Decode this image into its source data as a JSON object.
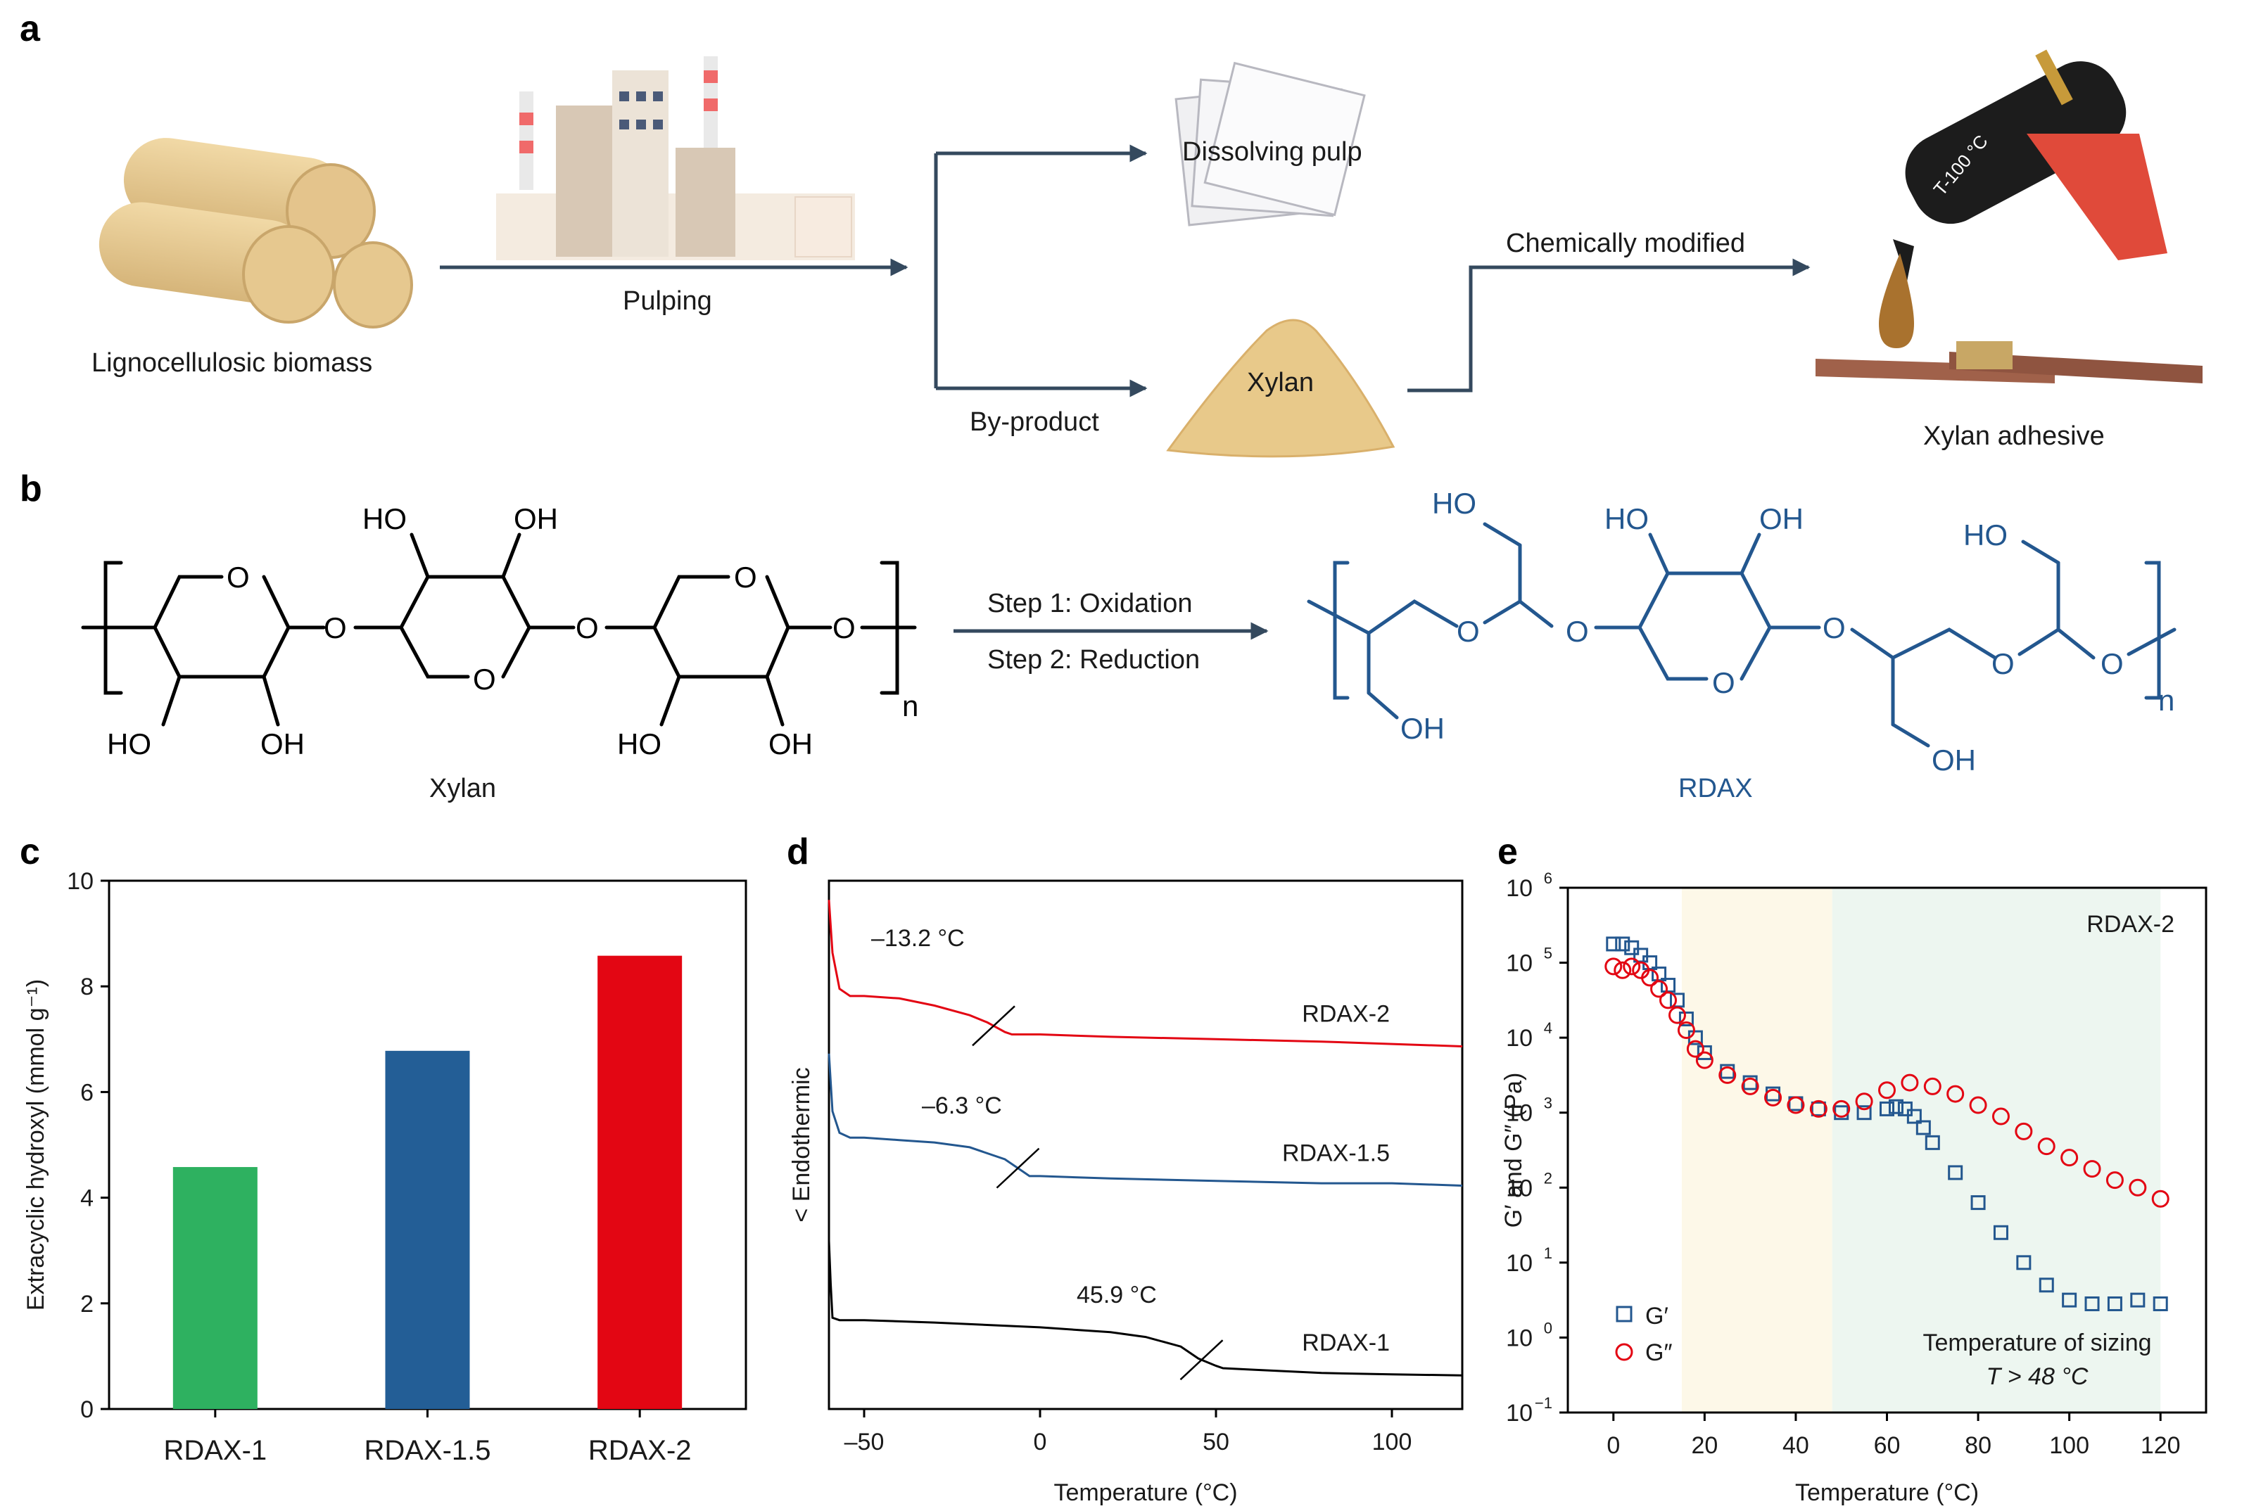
{
  "panels": {
    "a": "a",
    "b": "b",
    "c": "c",
    "d": "d",
    "e": "e"
  },
  "panel_a": {
    "biomass_label": "Lignocellulosic biomass",
    "pulping_label": "Pulping",
    "dissolving_pulp_label": "Dissolving pulp",
    "xylan_label": "Xylan",
    "byproduct_label": "By-product",
    "chem_mod_label": "Chemically modified",
    "adhesive_label": "Xylan adhesive",
    "glue_gun_text": "T-100 °C"
  },
  "panel_b": {
    "xylan_name": "Xylan",
    "rdax_name": "RDAX",
    "step1": "Step 1: Oxidation",
    "step2": "Step 2: Reduction",
    "ho": "HO",
    "oh": "OH",
    "o": "O",
    "n": "n"
  },
  "colors": {
    "green": "#2eb160",
    "blue": "#235e96",
    "red": "#e30613",
    "black": "#000000",
    "rdax_blue": "#23578f",
    "shade_yellow": "#fdf8e8",
    "shade_green": "#edf6f0"
  },
  "chart_data": [
    {
      "type": "bar",
      "panel": "c",
      "categories": [
        "RDAX-1",
        "RDAX-1.5",
        "RDAX-2"
      ],
      "values": [
        4.58,
        6.78,
        8.58
      ],
      "bar_colors": [
        "#2eb160",
        "#235e96",
        "#e30613"
      ],
      "ylabel": "Extracyclic hydroxyl (mmol g⁻¹)",
      "ylim": [
        0,
        10
      ],
      "yticks": [
        "0",
        "2",
        "4",
        "6",
        "8",
        "10"
      ]
    },
    {
      "type": "line",
      "panel": "d",
      "xlabel": "Temperature (°C)",
      "ylabel": "< Endothermic",
      "xlim": [
        -60,
        120
      ],
      "xticks": [
        "–50",
        "0",
        "50",
        "100"
      ],
      "series": [
        {
          "name": "RDAX-2",
          "color": "#e30613",
          "tg": "–13.2 °C",
          "x": [
            -60,
            -59,
            -57,
            -54,
            -50,
            -40,
            -30,
            -20,
            -15,
            -10,
            -8,
            0,
            20,
            50,
            80,
            100,
            120
          ],
          "y": [
            10.6,
            9.5,
            8.75,
            8.6,
            8.6,
            8.55,
            8.4,
            8.2,
            8.05,
            7.85,
            7.8,
            7.8,
            7.75,
            7.7,
            7.65,
            7.6,
            7.55
          ]
        },
        {
          "name": "RDAX-1.5",
          "color": "#23578f",
          "tg": "–6.3 °C",
          "x": [
            -60,
            -59,
            -57,
            -54,
            -50,
            -40,
            -30,
            -20,
            -10,
            -5,
            -3,
            0,
            20,
            50,
            80,
            100,
            120
          ],
          "y": [
            7.4,
            6.2,
            5.75,
            5.65,
            5.65,
            5.6,
            5.55,
            5.45,
            5.2,
            4.95,
            4.85,
            4.85,
            4.8,
            4.75,
            4.7,
            4.7,
            4.65
          ],
          "y_is_relative": false
        },
        {
          "name": "RDAX-1",
          "color": "#000000",
          "tg": "45.9 °C",
          "x": [
            -60,
            -59.5,
            -59,
            -57,
            -54,
            -50,
            -30,
            0,
            20,
            30,
            40,
            45,
            50,
            52,
            60,
            80,
            100,
            120
          ],
          "y": [
            3.5,
            2.6,
            1.9,
            1.85,
            1.85,
            1.85,
            1.8,
            1.7,
            1.6,
            1.5,
            1.3,
            1.05,
            0.9,
            0.85,
            0.82,
            0.75,
            0.72,
            0.7
          ]
        }
      ]
    },
    {
      "type": "scatter",
      "panel": "e",
      "xlabel": "Temperature (°C)",
      "ylabel": "G′ and G″ (Pa)",
      "xlim": [
        -10,
        130
      ],
      "ylim_log10": [
        -1,
        6
      ],
      "xticks": [
        "0",
        "20",
        "40",
        "60",
        "80",
        "100",
        "120"
      ],
      "yticks": [
        "10",
        "10",
        "10",
        "10",
        "10",
        "10",
        "10",
        "10"
      ],
      "yticks_exp": [
        "−1",
        "0",
        "1",
        "2",
        "3",
        "4",
        "5",
        "6"
      ],
      "shaded_regions": [
        {
          "from": 15,
          "to": 48,
          "color": "#fdf8e8"
        },
        {
          "from": 48,
          "to": 120,
          "color": "#edf6f0"
        }
      ],
      "label_sample": "RDAX-2",
      "label_sizing": "Temperature of sizing",
      "label_condition": "T > 48 °C",
      "series": [
        {
          "name": "G′",
          "marker": "square",
          "color": "#23578f",
          "x": [
            0,
            2,
            4,
            6,
            8,
            10,
            12,
            14,
            16,
            18,
            20,
            25,
            30,
            35,
            40,
            45,
            50,
            55,
            60,
            62,
            64,
            66,
            68,
            70,
            75,
            80,
            85,
            90,
            95,
            100,
            105,
            110,
            115,
            120
          ],
          "logy": [
            5.25,
            5.25,
            5.2,
            5.1,
            5.0,
            4.85,
            4.7,
            4.5,
            4.25,
            4.0,
            3.8,
            3.55,
            3.4,
            3.25,
            3.12,
            3.05,
            3.0,
            3.0,
            3.05,
            3.08,
            3.05,
            2.95,
            2.8,
            2.6,
            2.2,
            1.8,
            1.4,
            1.0,
            0.7,
            0.5,
            0.45,
            0.45,
            0.5,
            0.45
          ]
        },
        {
          "name": "G″",
          "marker": "circle",
          "color": "#e30613",
          "x": [
            0,
            2,
            4,
            6,
            8,
            10,
            12,
            14,
            16,
            18,
            20,
            25,
            30,
            35,
            40,
            45,
            50,
            55,
            60,
            65,
            70,
            75,
            80,
            85,
            90,
            95,
            100,
            105,
            110,
            115,
            120
          ],
          "logy": [
            4.95,
            4.9,
            4.95,
            4.9,
            4.8,
            4.65,
            4.5,
            4.3,
            4.1,
            3.85,
            3.7,
            3.5,
            3.35,
            3.2,
            3.1,
            3.05,
            3.05,
            3.15,
            3.3,
            3.4,
            3.35,
            3.25,
            3.1,
            2.95,
            2.75,
            2.55,
            2.4,
            2.25,
            2.1,
            2.0,
            1.85
          ]
        }
      ]
    }
  ]
}
